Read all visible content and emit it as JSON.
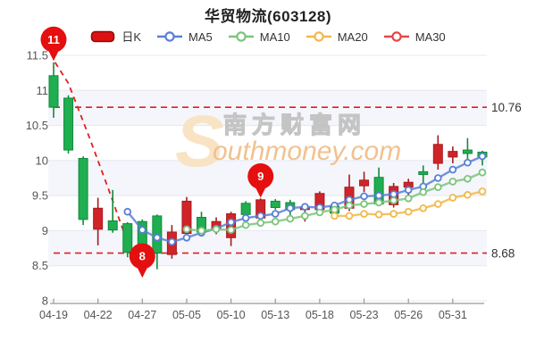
{
  "title": "华贸物流(603128)",
  "legend": [
    {
      "label": "日K",
      "type": "rect",
      "color": "#dd1111",
      "border": "#8a0d0d"
    },
    {
      "label": "MA5",
      "type": "line",
      "color": "#5a7fd6"
    },
    {
      "label": "MA10",
      "type": "line",
      "color": "#7cc47c"
    },
    {
      "label": "MA20",
      "type": "line",
      "color": "#f2b84b"
    },
    {
      "label": "MA30",
      "type": "line",
      "color": "#e24848"
    }
  ],
  "watermark": {
    "logo_letter": "S",
    "cn": "南方财富网",
    "en": "outhmoney.com"
  },
  "chart_data": {
    "type": "candlestick",
    "title": "华贸物流(603128)",
    "ylim": [
      8,
      11.5
    ],
    "y_ticks": [
      "11.5",
      "11",
      "10.5",
      "10",
      "9.5",
      "9",
      "8.5",
      "8"
    ],
    "x_tick_labels": [
      "04-19",
      "04-22",
      "04-27",
      "05-05",
      "05-10",
      "05-13",
      "05-18",
      "05-23",
      "05-26",
      "05-31"
    ],
    "ticks_every_n_candles": 3,
    "grid": "horizontal-bands",
    "legend_position": "top",
    "colors": {
      "up": "#d02428",
      "up_border": "#a81a1e",
      "down": "#1fae50",
      "down_border": "#128a3c",
      "ma5": "#5a7fd6",
      "ma10": "#7cc47c",
      "ma20": "#f2b84b",
      "ma30": "#e24848",
      "marker_pin": "#e50f0f",
      "reference": "#e01f1f",
      "band": "#f4f6fb",
      "gridline": "#e5e8f0"
    },
    "candles": [
      {
        "o": 11.21,
        "c": 10.76,
        "l": 10.61,
        "h": 11.4
      },
      {
        "o": 10.89,
        "c": 10.15,
        "l": 10.1,
        "h": 10.93
      },
      {
        "o": 10.03,
        "c": 9.16,
        "l": 9.08,
        "h": 10.06
      },
      {
        "o": 9.02,
        "c": 9.32,
        "l": 8.79,
        "h": 9.47
      },
      {
        "o": 9.14,
        "c": 9.01,
        "l": 8.97,
        "h": 9.58
      },
      {
        "o": 9.1,
        "c": 8.69,
        "l": 8.62,
        "h": 9.12
      },
      {
        "o": 9.13,
        "c": 8.72,
        "l": 8.4,
        "h": 9.16
      },
      {
        "o": 9.21,
        "c": 8.68,
        "l": 8.45,
        "h": 9.23
      },
      {
        "o": 8.66,
        "c": 8.98,
        "l": 8.6,
        "h": 9.08
      },
      {
        "o": 8.96,
        "c": 9.42,
        "l": 8.9,
        "h": 9.48
      },
      {
        "o": 9.19,
        "c": 8.98,
        "l": 8.94,
        "h": 9.27
      },
      {
        "o": 9.02,
        "c": 9.13,
        "l": 8.95,
        "h": 9.19
      },
      {
        "o": 8.9,
        "c": 9.24,
        "l": 8.78,
        "h": 9.27
      },
      {
        "o": 9.39,
        "c": 9.23,
        "l": 9.18,
        "h": 9.42
      },
      {
        "o": 9.18,
        "c": 9.44,
        "l": 9.13,
        "h": 9.46
      },
      {
        "o": 9.42,
        "c": 9.33,
        "l": 9.3,
        "h": 9.45
      },
      {
        "o": 9.4,
        "c": 9.3,
        "l": 9.21,
        "h": 9.44
      },
      {
        "o": 9.3,
        "c": 9.33,
        "l": 9.13,
        "h": 9.38
      },
      {
        "o": 9.3,
        "c": 9.53,
        "l": 9.27,
        "h": 9.56
      },
      {
        "o": 9.35,
        "c": 9.25,
        "l": 9.17,
        "h": 9.38
      },
      {
        "o": 9.32,
        "c": 9.62,
        "l": 9.28,
        "h": 9.8
      },
      {
        "o": 9.64,
        "c": 9.72,
        "l": 9.55,
        "h": 9.84
      },
      {
        "o": 9.76,
        "c": 9.38,
        "l": 9.35,
        "h": 9.9
      },
      {
        "o": 9.37,
        "c": 9.63,
        "l": 9.33,
        "h": 9.68
      },
      {
        "o": 9.62,
        "c": 9.69,
        "l": 9.5,
        "h": 9.74
      },
      {
        "o": 9.84,
        "c": 9.8,
        "l": 9.68,
        "h": 9.93
      },
      {
        "o": 9.96,
        "c": 10.23,
        "l": 9.87,
        "h": 10.36
      },
      {
        "o": 10.05,
        "c": 10.13,
        "l": 9.96,
        "h": 10.2
      },
      {
        "o": 10.15,
        "c": 10.1,
        "l": 9.96,
        "h": 10.32
      },
      {
        "o": 10.12,
        "c": 10.05,
        "l": 9.93,
        "h": 10.14
      }
    ],
    "series": [
      {
        "name": "MA5",
        "start_index": 5,
        "values": [
          9.27,
          9.01,
          8.9,
          8.84,
          8.9,
          8.97,
          9.03,
          9.12,
          9.18,
          9.21,
          9.24,
          9.32,
          9.34,
          9.33,
          9.36,
          9.44,
          9.49,
          9.5,
          9.52,
          9.58,
          9.63,
          9.75,
          9.87,
          9.97,
          10.06
        ]
      },
      {
        "name": "MA10",
        "start_index": 9,
        "values": [
          9.02,
          9.0,
          9.02,
          9.01,
          9.08,
          9.11,
          9.13,
          9.17,
          9.21,
          9.26,
          9.3,
          9.36,
          9.38,
          9.4,
          9.43,
          9.46,
          9.55,
          9.62,
          9.7,
          9.74,
          9.83
        ]
      },
      {
        "name": "MA20",
        "start_index": 19,
        "values": [
          9.21,
          9.21,
          9.24,
          9.23,
          9.24,
          9.27,
          9.32,
          9.38,
          9.47,
          9.51,
          9.56
        ]
      },
      {
        "name": "MA30",
        "start_index": null,
        "values": []
      }
    ],
    "reference_lines": {
      "high": {
        "value": 10.76,
        "label": "10.76"
      },
      "low": {
        "value": 8.68,
        "label": "8.68"
      }
    },
    "annotations": [
      {
        "label": "11",
        "index": 0,
        "value": 11.42
      },
      {
        "label": "8",
        "index": 6,
        "value": 8.33
      },
      {
        "label": "9",
        "index": 14,
        "value": 9.47
      }
    ],
    "trendline_index_value": [
      [
        0.1,
        11.4
      ],
      [
        1.0,
        11.1
      ],
      [
        2.4,
        10.34
      ],
      [
        3.7,
        9.6
      ],
      [
        4.8,
        8.95
      ],
      [
        5.7,
        8.53
      ],
      [
        6.2,
        8.3
      ]
    ]
  }
}
